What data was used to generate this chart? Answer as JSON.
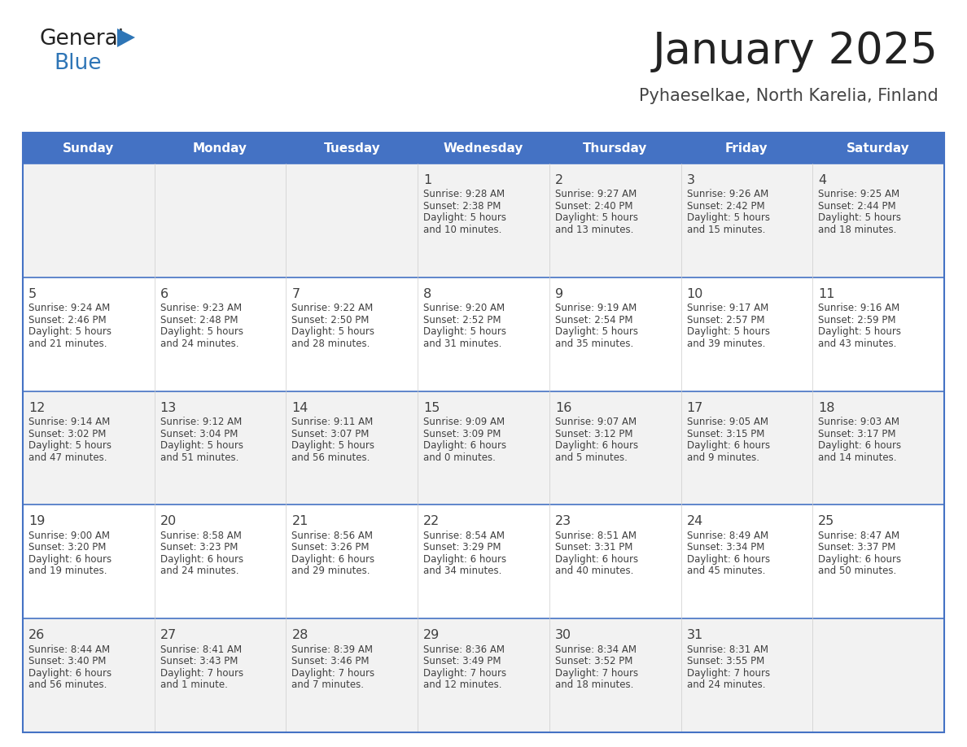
{
  "title": "January 2025",
  "subtitle": "Pyhaeselkae, North Karelia, Finland",
  "header_bg": "#4472C4",
  "header_text_color": "#FFFFFF",
  "days_of_week": [
    "Sunday",
    "Monday",
    "Tuesday",
    "Wednesday",
    "Thursday",
    "Friday",
    "Saturday"
  ],
  "row_bg_even": "#F2F2F2",
  "row_bg_odd": "#FFFFFF",
  "cell_border_color": "#4472C4",
  "text_color": "#404040",
  "title_color": "#222222",
  "subtitle_color": "#444444",
  "logo_general_color": "#222222",
  "logo_blue_color": "#2E75B6",
  "calendar_data": [
    {
      "day": 1,
      "col": 3,
      "row": 0,
      "sunrise": "9:28 AM",
      "sunset": "2:38 PM",
      "daylight": "5 hours and 10 minutes."
    },
    {
      "day": 2,
      "col": 4,
      "row": 0,
      "sunrise": "9:27 AM",
      "sunset": "2:40 PM",
      "daylight": "5 hours and 13 minutes."
    },
    {
      "day": 3,
      "col": 5,
      "row": 0,
      "sunrise": "9:26 AM",
      "sunset": "2:42 PM",
      "daylight": "5 hours and 15 minutes."
    },
    {
      "day": 4,
      "col": 6,
      "row": 0,
      "sunrise": "9:25 AM",
      "sunset": "2:44 PM",
      "daylight": "5 hours and 18 minutes."
    },
    {
      "day": 5,
      "col": 0,
      "row": 1,
      "sunrise": "9:24 AM",
      "sunset": "2:46 PM",
      "daylight": "5 hours and 21 minutes."
    },
    {
      "day": 6,
      "col": 1,
      "row": 1,
      "sunrise": "9:23 AM",
      "sunset": "2:48 PM",
      "daylight": "5 hours and 24 minutes."
    },
    {
      "day": 7,
      "col": 2,
      "row": 1,
      "sunrise": "9:22 AM",
      "sunset": "2:50 PM",
      "daylight": "5 hours and 28 minutes."
    },
    {
      "day": 8,
      "col": 3,
      "row": 1,
      "sunrise": "9:20 AM",
      "sunset": "2:52 PM",
      "daylight": "5 hours and 31 minutes."
    },
    {
      "day": 9,
      "col": 4,
      "row": 1,
      "sunrise": "9:19 AM",
      "sunset": "2:54 PM",
      "daylight": "5 hours and 35 minutes."
    },
    {
      "day": 10,
      "col": 5,
      "row": 1,
      "sunrise": "9:17 AM",
      "sunset": "2:57 PM",
      "daylight": "5 hours and 39 minutes."
    },
    {
      "day": 11,
      "col": 6,
      "row": 1,
      "sunrise": "9:16 AM",
      "sunset": "2:59 PM",
      "daylight": "5 hours and 43 minutes."
    },
    {
      "day": 12,
      "col": 0,
      "row": 2,
      "sunrise": "9:14 AM",
      "sunset": "3:02 PM",
      "daylight": "5 hours and 47 minutes."
    },
    {
      "day": 13,
      "col": 1,
      "row": 2,
      "sunrise": "9:12 AM",
      "sunset": "3:04 PM",
      "daylight": "5 hours and 51 minutes."
    },
    {
      "day": 14,
      "col": 2,
      "row": 2,
      "sunrise": "9:11 AM",
      "sunset": "3:07 PM",
      "daylight": "5 hours and 56 minutes."
    },
    {
      "day": 15,
      "col": 3,
      "row": 2,
      "sunrise": "9:09 AM",
      "sunset": "3:09 PM",
      "daylight": "6 hours and 0 minutes."
    },
    {
      "day": 16,
      "col": 4,
      "row": 2,
      "sunrise": "9:07 AM",
      "sunset": "3:12 PM",
      "daylight": "6 hours and 5 minutes."
    },
    {
      "day": 17,
      "col": 5,
      "row": 2,
      "sunrise": "9:05 AM",
      "sunset": "3:15 PM",
      "daylight": "6 hours and 9 minutes."
    },
    {
      "day": 18,
      "col": 6,
      "row": 2,
      "sunrise": "9:03 AM",
      "sunset": "3:17 PM",
      "daylight": "6 hours and 14 minutes."
    },
    {
      "day": 19,
      "col": 0,
      "row": 3,
      "sunrise": "9:00 AM",
      "sunset": "3:20 PM",
      "daylight": "6 hours and 19 minutes."
    },
    {
      "day": 20,
      "col": 1,
      "row": 3,
      "sunrise": "8:58 AM",
      "sunset": "3:23 PM",
      "daylight": "6 hours and 24 minutes."
    },
    {
      "day": 21,
      "col": 2,
      "row": 3,
      "sunrise": "8:56 AM",
      "sunset": "3:26 PM",
      "daylight": "6 hours and 29 minutes."
    },
    {
      "day": 22,
      "col": 3,
      "row": 3,
      "sunrise": "8:54 AM",
      "sunset": "3:29 PM",
      "daylight": "6 hours and 34 minutes."
    },
    {
      "day": 23,
      "col": 4,
      "row": 3,
      "sunrise": "8:51 AM",
      "sunset": "3:31 PM",
      "daylight": "6 hours and 40 minutes."
    },
    {
      "day": 24,
      "col": 5,
      "row": 3,
      "sunrise": "8:49 AM",
      "sunset": "3:34 PM",
      "daylight": "6 hours and 45 minutes."
    },
    {
      "day": 25,
      "col": 6,
      "row": 3,
      "sunrise": "8:47 AM",
      "sunset": "3:37 PM",
      "daylight": "6 hours and 50 minutes."
    },
    {
      "day": 26,
      "col": 0,
      "row": 4,
      "sunrise": "8:44 AM",
      "sunset": "3:40 PM",
      "daylight": "6 hours and 56 minutes."
    },
    {
      "day": 27,
      "col": 1,
      "row": 4,
      "sunrise": "8:41 AM",
      "sunset": "3:43 PM",
      "daylight": "7 hours and 1 minute."
    },
    {
      "day": 28,
      "col": 2,
      "row": 4,
      "sunrise": "8:39 AM",
      "sunset": "3:46 PM",
      "daylight": "7 hours and 7 minutes."
    },
    {
      "day": 29,
      "col": 3,
      "row": 4,
      "sunrise": "8:36 AM",
      "sunset": "3:49 PM",
      "daylight": "7 hours and 12 minutes."
    },
    {
      "day": 30,
      "col": 4,
      "row": 4,
      "sunrise": "8:34 AM",
      "sunset": "3:52 PM",
      "daylight": "7 hours and 18 minutes."
    },
    {
      "day": 31,
      "col": 5,
      "row": 4,
      "sunrise": "8:31 AM",
      "sunset": "3:55 PM",
      "daylight": "7 hours and 24 minutes."
    }
  ]
}
